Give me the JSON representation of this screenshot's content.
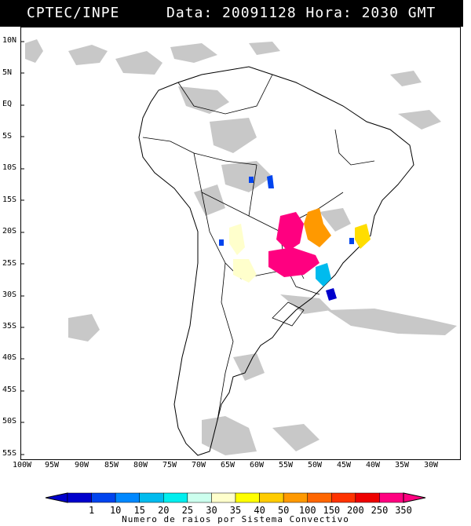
{
  "header": {
    "agency": "CPTEC/INPE",
    "data_label": "Data: 20091128 Hora: 2030 GMT"
  },
  "map": {
    "lat_labels": [
      "10N",
      "5N",
      "EQ",
      "5S",
      "10S",
      "15S",
      "20S",
      "25S",
      "30S",
      "35S",
      "40S",
      "45S",
      "50S",
      "55S"
    ],
    "lon_labels": [
      "100W",
      "95W",
      "90W",
      "85W",
      "80W",
      "75W",
      "70W",
      "65W",
      "60W",
      "55W",
      "50W",
      "45W",
      "40W",
      "35W",
      "30W"
    ],
    "colors": {
      "land": "#ffffff",
      "cloud": "#c8c8c8",
      "border": "#000000"
    }
  },
  "legend": {
    "values": [
      "1",
      "10",
      "15",
      "20",
      "25",
      "30",
      "35",
      "40",
      "50",
      "100",
      "150",
      "200",
      "250",
      "350"
    ],
    "colors": [
      "#0000cc",
      "#0044ee",
      "#0088ff",
      "#00bbee",
      "#00eeee",
      "#ccffee",
      "#ffffcc",
      "#ffff00",
      "#ffcc00",
      "#ff9900",
      "#ff6600",
      "#ff3300",
      "#ee0000",
      "#ff0080"
    ],
    "caption": "Numero de raios por Sistema Convectivo"
  }
}
